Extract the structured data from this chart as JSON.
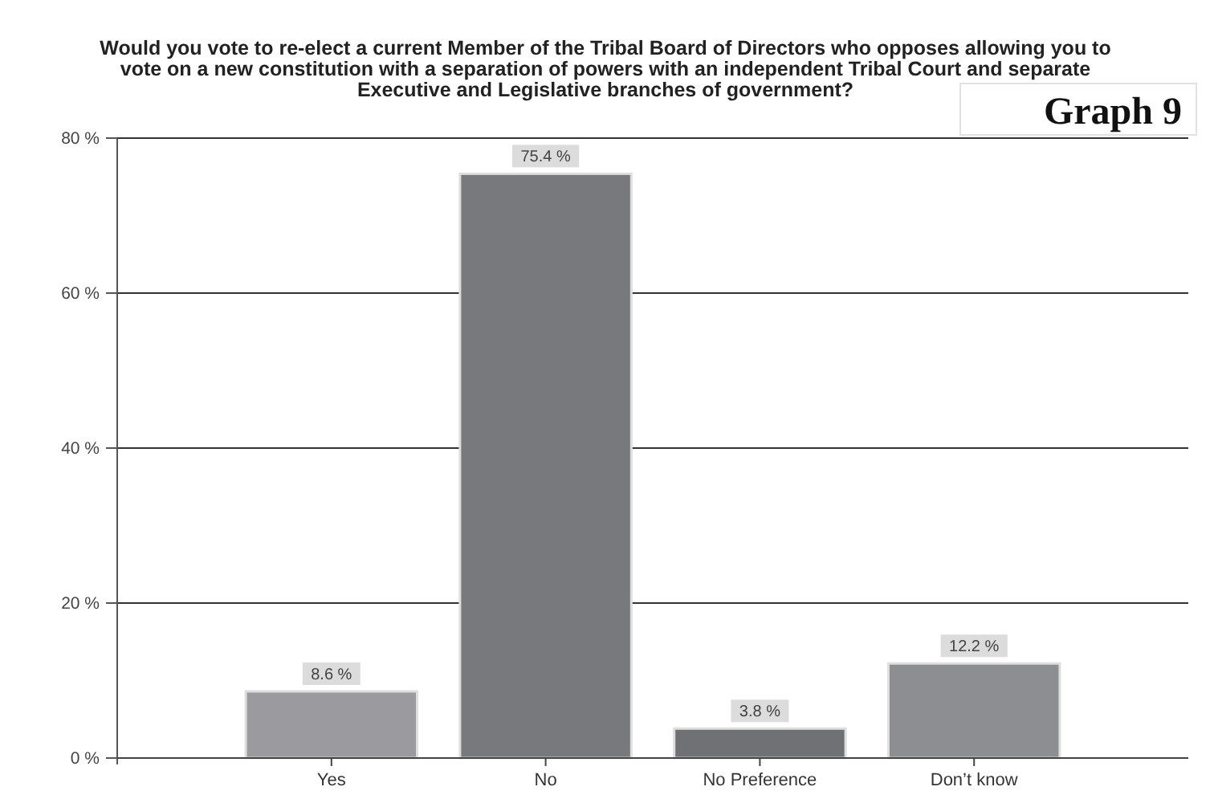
{
  "chart_data": {
    "type": "bar",
    "title": "Would you vote to re-elect a current Member of the Tribal Board of Directors who opposes allowing you to vote on a new constitution with a separation of powers with an independent Tribal Court and separate Executive and Legislative branches of government?",
    "categories": [
      "Yes",
      "No",
      "No Preference",
      "Don’t know"
    ],
    "values": [
      8.6,
      75.4,
      3.8,
      12.2
    ],
    "colors": [
      "#9b9b9f",
      "#78797d",
      "#707175",
      "#8d8e92"
    ],
    "value_labels": [
      "8.6 %",
      "75.4 %",
      "3.8 %",
      "12.2 %"
    ],
    "ylim": [
      0,
      80
    ],
    "yticks": [
      {
        "value": 0,
        "label": "0 %"
      },
      {
        "value": 20,
        "label": "20 %"
      },
      {
        "value": 40,
        "label": "40 %"
      },
      {
        "value": 60,
        "label": "60 %"
      },
      {
        "value": 80,
        "label": "80 %"
      }
    ],
    "grid": "y",
    "annotations": [
      "Graph 9"
    ]
  }
}
